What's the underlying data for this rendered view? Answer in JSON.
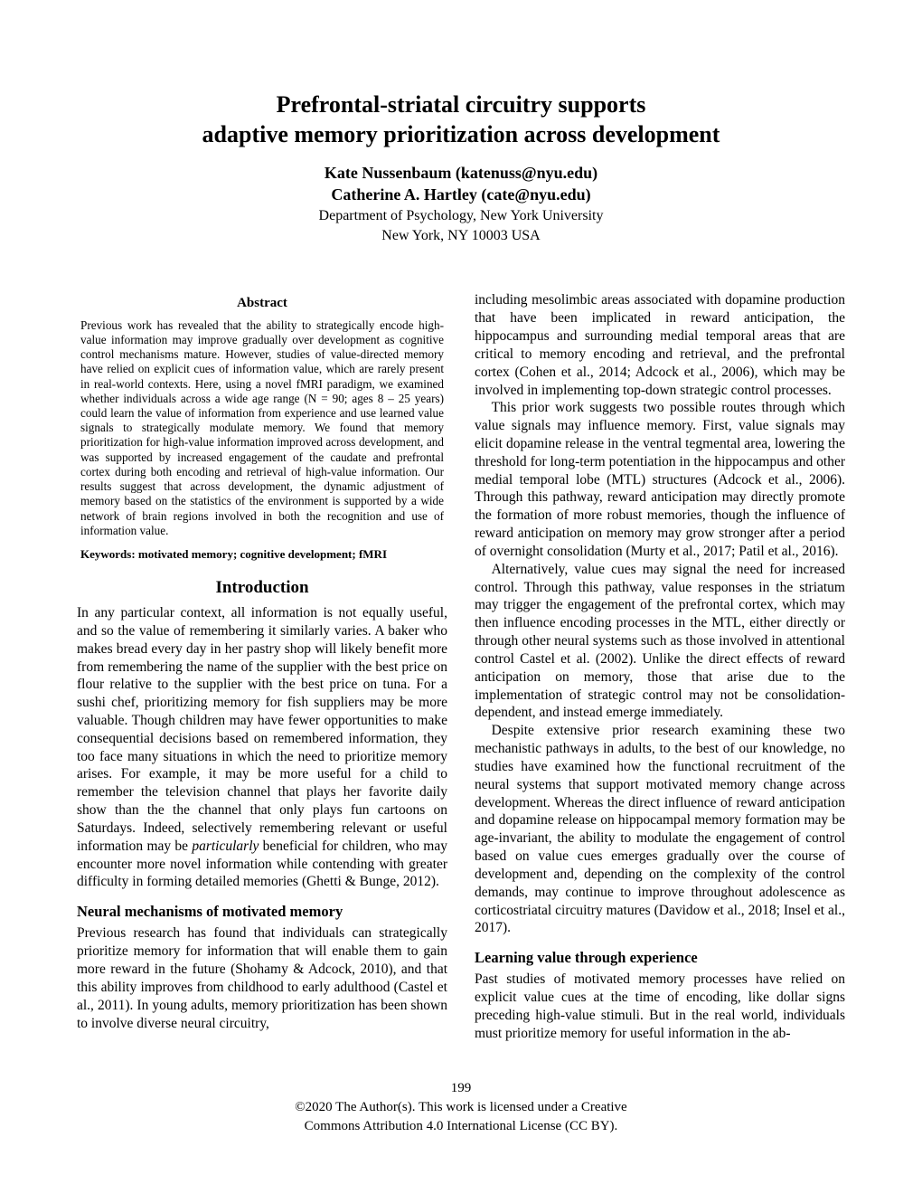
{
  "title_line1": "Prefrontal-striatal circuitry supports",
  "title_line2": "adaptive memory prioritization across development",
  "author1": "Kate Nussenbaum (katenuss@nyu.edu)",
  "author2": "Catherine A. Hartley (cate@nyu.edu)",
  "affiliation1": "Department of Psychology, New York University",
  "affiliation2": "New York, NY 10003 USA",
  "abstract_heading": "Abstract",
  "abstract_body": "Previous work has revealed that the ability to strategically encode high-value information may improve gradually over development as cognitive control mechanisms mature. However, studies of value-directed memory have relied on explicit cues of information value, which are rarely present in real-world contexts. Here, using a novel fMRI paradigm, we examined whether individuals across a wide age range (N = 90; ages 8 – 25 years) could learn the value of information from experience and use learned value signals to strategically modulate memory. We found that memory prioritization for high-value information improved across development, and was supported by increased engagement of the caudate and prefrontal cortex during both encoding and retrieval of high-value information. Our results suggest that across development, the dynamic adjustment of memory based on the statistics of the environment is supported by a wide network of brain regions involved in both the recognition and use of information value.",
  "keywords": "Keywords: motivated memory; cognitive development; fMRI",
  "intro_heading": "Introduction",
  "intro_p1a": "In any particular context, all information is not equally useful, and so the value of remembering it similarly varies. A baker who makes bread every day in her pastry shop will likely benefit more from remembering the name of the supplier with the best price on flour relative to the supplier with the best price on tuna. For a sushi chef, prioritizing memory for fish suppliers may be more valuable. Though children may have fewer opportunities to make consequential decisions based on remembered information, they too face many situations in which the need to prioritize memory arises. For example, it may be more useful for a child to remember the television channel that plays her favorite daily show than the the channel that only plays fun cartoons on Saturdays. Indeed, selectively remembering relevant or useful information may be ",
  "intro_p1_em": "particularly",
  "intro_p1b": " beneficial for children, who may encounter more novel information while contending with greater difficulty in forming detailed memories (Ghetti & Bunge, 2012).",
  "sub1_heading": "Neural mechanisms of motivated memory",
  "sub1_p1": "Previous research has found that individuals can strategically prioritize memory for information that will enable them to gain more reward in the future (Shohamy & Adcock, 2010), and that this ability improves from childhood to early adulthood (Castel et al., 2011). In young adults, memory prioritization has been shown to involve diverse neural circuitry,",
  "col2_p1": "including mesolimbic areas associated with dopamine production that have been implicated in reward anticipation, the hippocampus and surrounding medial temporal areas that are critical to memory encoding and retrieval, and the prefrontal cortex (Cohen et al., 2014; Adcock et al., 2006), which may be involved in implementing top-down strategic control processes.",
  "col2_p2": "This prior work suggests two possible routes through which value signals may influence memory. First, value signals may elicit dopamine release in the ventral tegmental area, lowering the threshold for long-term potentiation in the hippocampus and other medial temporal lobe (MTL) structures (Adcock et al., 2006). Through this pathway, reward anticipation may directly promote the formation of more robust memories, though the influence of reward anticipation on memory may grow stronger after a period of overnight consolidation (Murty et al., 2017; Patil et al., 2016).",
  "col2_p3": "Alternatively, value cues may signal the need for increased control. Through this pathway, value responses in the striatum may trigger the engagement of the prefrontal cortex, which may then influence encoding processes in the MTL, either directly or through other neural systems such as those involved in attentional control Castel et al. (2002). Unlike the direct effects of reward anticipation on memory, those that arise due to the implementation of strategic control may not be consolidation-dependent, and instead emerge immediately.",
  "col2_p4": "Despite extensive prior research examining these two mechanistic pathways in adults, to the best of our knowledge, no studies have examined how the functional recruitment of the neural systems that support motivated memory change across development. Whereas the direct influence of reward anticipation and dopamine release on hippocampal memory formation may be age-invariant, the ability to modulate the engagement of control based on value cues emerges gradually over the course of development and, depending on the complexity of the control demands, may continue to improve throughout adolescence as corticostriatal circuitry matures (Davidow et al., 2018; Insel et al., 2017).",
  "sub2_heading": "Learning value through experience",
  "sub2_p1": "Past studies of motivated memory processes have relied on explicit value cues at the time of encoding, like dollar signs preceding high-value stimuli. But in the real world, individuals must prioritize memory for useful information in the ab-",
  "page_number": "199",
  "copyright_line1": "©2020 The Author(s). This work is licensed under a Creative",
  "copyright_line2": "Commons Attribution 4.0 International License (CC BY)."
}
